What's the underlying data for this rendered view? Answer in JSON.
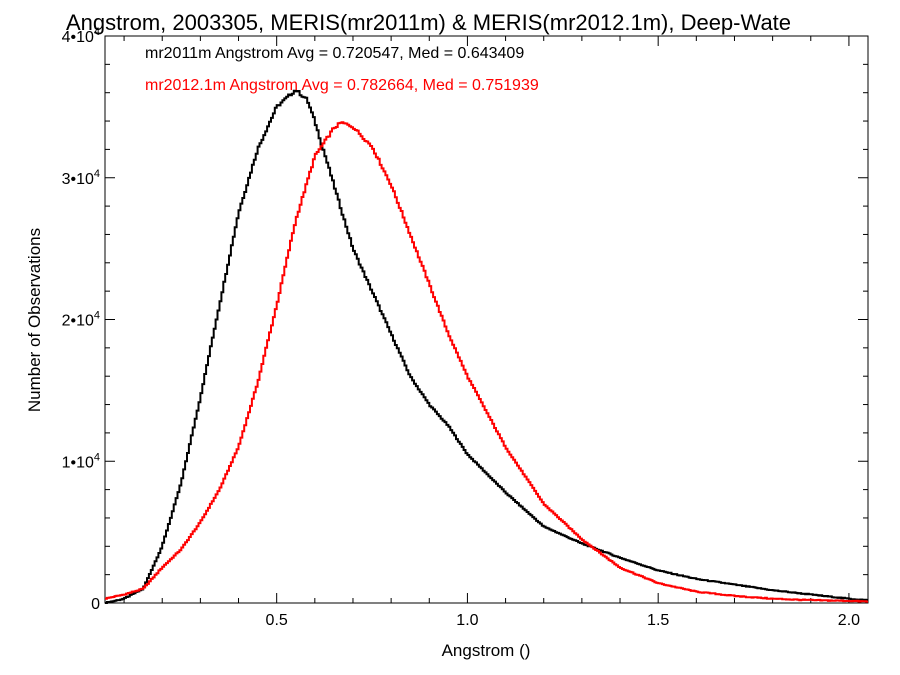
{
  "chart_data": {
    "type": "line",
    "style": "step-histogram",
    "title": "Angstrom, 2003305, MERIS(mr2011m) & MERIS(mr2012.1m), Deep-Wate",
    "xlabel": "Angstrom ()",
    "ylabel": "Number of Observations",
    "xlim": [
      0.05,
      2.05
    ],
    "ylim": [
      0,
      40000
    ],
    "x_ticks": [
      {
        "value": 0.5,
        "label": "0.5"
      },
      {
        "value": 1.0,
        "label": "1.0"
      },
      {
        "value": 1.5,
        "label": "1.5"
      },
      {
        "value": 2.0,
        "label": "2.0"
      }
    ],
    "y_ticks": [
      {
        "value": 0,
        "mant": "0",
        "exp": ""
      },
      {
        "value": 10000,
        "mant": "1•10",
        "exp": "4"
      },
      {
        "value": 20000,
        "mant": "2•10",
        "exp": "4"
      },
      {
        "value": 30000,
        "mant": "3•10",
        "exp": "4"
      },
      {
        "value": 40000,
        "mant": "4•10",
        "exp": "4"
      }
    ],
    "grid": false,
    "annotations": [
      {
        "text": "mr2011m Angstrom Avg = 0.720547, Med = 0.643409",
        "color": "#000000"
      },
      {
        "text": "mr2012.1m Angstrom Avg = 0.782664, Med = 0.751939",
        "color": "#ff0000"
      }
    ],
    "series": [
      {
        "color": "#000000",
        "x": [
          0.05,
          0.1,
          0.15,
          0.2,
          0.25,
          0.3,
          0.35,
          0.4,
          0.45,
          0.5,
          0.55,
          0.58,
          0.6,
          0.65,
          0.7,
          0.75,
          0.8,
          0.85,
          0.9,
          0.95,
          1.0,
          1.1,
          1.2,
          1.3,
          1.4,
          1.5,
          1.6,
          1.7,
          1.8,
          1.9,
          2.0,
          2.05
        ],
        "y": [
          0,
          300,
          1000,
          4000,
          8500,
          14500,
          21000,
          27500,
          32000,
          35000,
          36200,
          35500,
          34000,
          29500,
          25000,
          22000,
          19000,
          16000,
          14000,
          12500,
          10500,
          7800,
          5400,
          4200,
          3200,
          2300,
          1700,
          1300,
          900,
          600,
          300,
          200
        ]
      },
      {
        "color": "#ff0000",
        "x": [
          0.05,
          0.1,
          0.15,
          0.2,
          0.25,
          0.3,
          0.35,
          0.4,
          0.45,
          0.5,
          0.55,
          0.6,
          0.65,
          0.67,
          0.7,
          0.75,
          0.8,
          0.85,
          0.9,
          0.95,
          1.0,
          1.1,
          1.2,
          1.3,
          1.4,
          1.5,
          1.6,
          1.7,
          1.8,
          1.9,
          2.0,
          2.05
        ],
        "y": [
          300,
          600,
          1000,
          2500,
          3800,
          5700,
          8000,
          11000,
          15500,
          21000,
          27000,
          31500,
          33500,
          33900,
          33600,
          32200,
          29500,
          26000,
          22500,
          19000,
          16000,
          11000,
          7000,
          4500,
          2500,
          1400,
          800,
          500,
          300,
          200,
          150,
          100
        ]
      }
    ]
  }
}
